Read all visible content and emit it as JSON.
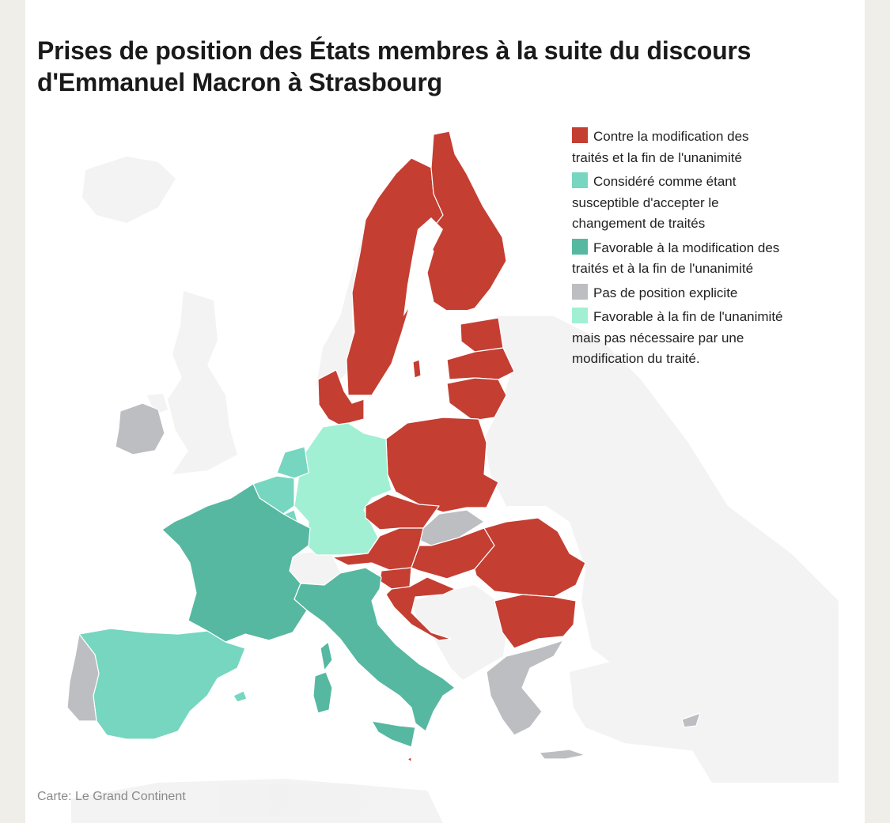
{
  "title": "Prises de position des États membres à la suite du discours d'Emmanuel Macron à Strasbourg",
  "source": "Carte: Le Grand Continent",
  "colors": {
    "against": "#c43e32",
    "likely": "#76d6c0",
    "favorable": "#56b8a0",
    "no_position": "#bdbec2",
    "favorable_unanimity": "#a2f0d3",
    "non_eu": "#f3f3f3",
    "sea": "#ffffff"
  },
  "legend": [
    {
      "label": "Contre la modification des traités et la fin de l'unanimité",
      "color": "#c43e32"
    },
    {
      "label": "Considéré comme étant susceptible d'accepter le changement de traités",
      "color": "#76d6c0"
    },
    {
      "label": "Favorable à la modification des traités et à la fin de l'unanimité",
      "color": "#56b8a0"
    },
    {
      "label": "Pas de position explicite",
      "color": "#bdbec2"
    },
    {
      "label": "Favorable à la fin de l'unanimité mais pas nécessaire par une modification du traité.",
      "color": "#a2f0d3"
    }
  ],
  "countries": [
    {
      "name": "Sweden",
      "category": "against"
    },
    {
      "name": "Finland",
      "category": "against"
    },
    {
      "name": "Denmark",
      "category": "against"
    },
    {
      "name": "Estonia",
      "category": "against"
    },
    {
      "name": "Latvia",
      "category": "against"
    },
    {
      "name": "Lithuania",
      "category": "against"
    },
    {
      "name": "Poland",
      "category": "against"
    },
    {
      "name": "Czechia",
      "category": "against"
    },
    {
      "name": "Austria",
      "category": "against"
    },
    {
      "name": "Hungary",
      "category": "against"
    },
    {
      "name": "Slovenia",
      "category": "against"
    },
    {
      "name": "Croatia",
      "category": "against"
    },
    {
      "name": "Romania",
      "category": "against"
    },
    {
      "name": "Bulgaria",
      "category": "against"
    },
    {
      "name": "Malta",
      "category": "against"
    },
    {
      "name": "Spain",
      "category": "likely"
    },
    {
      "name": "Belgium",
      "category": "likely"
    },
    {
      "name": "Netherlands",
      "category": "likely"
    },
    {
      "name": "Luxembourg",
      "category": "likely"
    },
    {
      "name": "France",
      "category": "favorable"
    },
    {
      "name": "Italy",
      "category": "favorable"
    },
    {
      "name": "Germany",
      "category": "favorable_unanimity"
    },
    {
      "name": "Ireland",
      "category": "no_position"
    },
    {
      "name": "Portugal",
      "category": "no_position"
    },
    {
      "name": "Slovakia",
      "category": "no_position"
    },
    {
      "name": "Greece",
      "category": "no_position"
    },
    {
      "name": "Cyprus",
      "category": "no_position"
    }
  ]
}
